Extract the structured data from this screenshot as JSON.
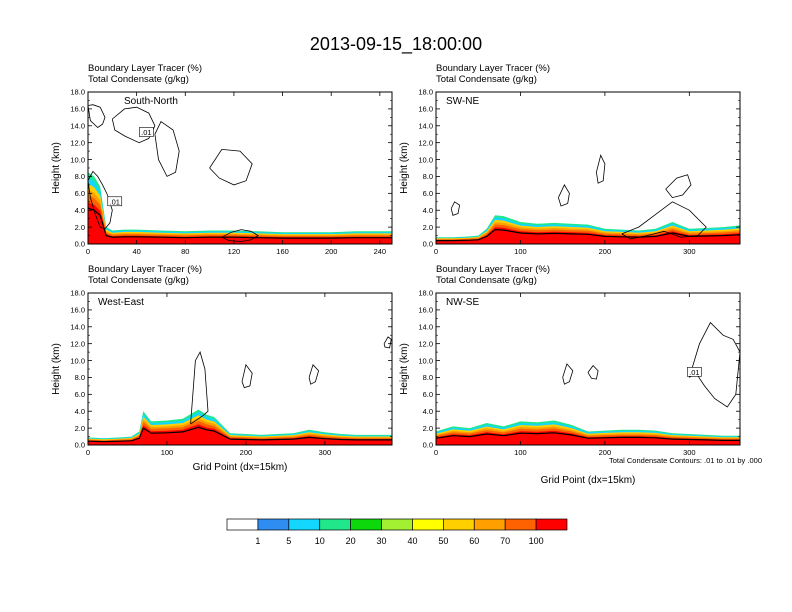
{
  "figure": {
    "title": "2013-09-15_18:00:00",
    "contour_note": "Total Condensate Contours: .01 to .01 by .000"
  },
  "colorbar": {
    "colors": [
      "#ffffff",
      "#2f8cf0",
      "#14d7ff",
      "#21e78b",
      "#0cd80c",
      "#a3f032",
      "#ffff00",
      "#ffcf00",
      "#ffa000",
      "#ff6200",
      "#ff0000"
    ],
    "labels": [
      "1",
      "5",
      "10",
      "20",
      "30",
      "40",
      "50",
      "60",
      "70",
      "100"
    ]
  },
  "chart_data": [
    {
      "type": "area",
      "label": "South-North",
      "subtitle_line1": "Boundary Layer Tracer   (%)",
      "subtitle_line2": "Total Condensate   (g/kg)",
      "ylabel": "Height (km)",
      "xlabel": "",
      "xlim": [
        0,
        250
      ],
      "ylim": [
        0,
        18
      ],
      "xticks": [
        "0",
        "40",
        "80",
        "120",
        "160",
        "200",
        "240"
      ],
      "yticks": [
        "0.0",
        "2.0",
        "4.0",
        "6.0",
        "8.0",
        "10.0",
        "12.0",
        "14.0",
        "16.0",
        "18.0"
      ],
      "contour_labels": [
        {
          "text": ".01",
          "x": 48,
          "y": 13.2
        },
        {
          "text": ".01",
          "x": 22,
          "y": 5.0
        }
      ],
      "boundary_layer_top_km": {
        "x": [
          0,
          5,
          10,
          15,
          20,
          30,
          40,
          60,
          80,
          100,
          120,
          140,
          160,
          180,
          200,
          220,
          240,
          250
        ],
        "y": [
          8.5,
          8.0,
          6.8,
          2.0,
          1.6,
          1.7,
          1.7,
          1.6,
          1.5,
          1.6,
          1.6,
          1.5,
          1.4,
          1.4,
          1.4,
          1.5,
          1.5,
          1.5
        ]
      },
      "condensate_contours_km": [
        {
          "x": [
            0,
            4,
            10,
            14,
            12,
            8,
            2,
            0
          ],
          "y": [
            16.4,
            16.5,
            16.2,
            15.0,
            14.2,
            13.8,
            14.6,
            16.4
          ]
        },
        {
          "x": [
            20,
            30,
            40,
            50,
            55,
            50,
            42,
            30,
            22,
            20
          ],
          "y": [
            14.8,
            16.0,
            16.2,
            15.5,
            14.0,
            12.5,
            12.0,
            12.8,
            13.5,
            14.8
          ]
        },
        {
          "x": [
            55,
            60,
            70,
            75,
            72,
            65,
            58,
            55
          ],
          "y": [
            13.0,
            14.5,
            13.5,
            11.0,
            8.5,
            8.0,
            10.0,
            13.0
          ]
        },
        {
          "x": [
            100,
            110,
            125,
            135,
            130,
            120,
            108,
            100
          ],
          "y": [
            9.0,
            11.2,
            11.0,
            9.5,
            7.5,
            7.0,
            7.8,
            9.0
          ]
        },
        {
          "x": [
            0,
            4,
            8,
            12,
            16,
            20,
            18,
            14,
            10,
            6,
            2,
            0
          ],
          "y": [
            7.5,
            8.6,
            8.0,
            7.0,
            5.8,
            4.0,
            2.5,
            1.8,
            2.0,
            3.5,
            5.5,
            7.5
          ]
        },
        {
          "x": [
            110,
            118,
            126,
            134,
            140,
            134,
            126,
            116,
            110
          ],
          "y": [
            0.8,
            1.4,
            1.7,
            1.5,
            1.0,
            0.5,
            0.3,
            0.4,
            0.8
          ]
        }
      ]
    },
    {
      "type": "area",
      "label": "SW-NE",
      "subtitle_line1": "Boundary Layer Tracer   (%)",
      "subtitle_line2": "Total Condensate   (g/kg)",
      "ylabel": "Height (km)",
      "xlabel": "",
      "xlim": [
        0,
        360
      ],
      "ylim": [
        0,
        18
      ],
      "xticks": [
        "0",
        "100",
        "200",
        "300"
      ],
      "yticks": [
        "0.0",
        "2.0",
        "4.0",
        "6.0",
        "8.0",
        "10.0",
        "12.0",
        "14.0",
        "16.0",
        "18.0"
      ],
      "contour_labels": [],
      "boundary_layer_top_km": {
        "x": [
          0,
          20,
          40,
          50,
          60,
          70,
          80,
          100,
          120,
          140,
          160,
          180,
          200,
          220,
          240,
          260,
          280,
          300,
          320,
          340,
          360
        ],
        "y": [
          0.8,
          0.8,
          0.9,
          1.0,
          1.8,
          3.4,
          3.3,
          2.6,
          2.4,
          2.5,
          2.4,
          2.3,
          1.8,
          1.7,
          1.6,
          1.8,
          2.6,
          1.8,
          1.9,
          2.0,
          2.2
        ]
      },
      "condensate_contours_km": [
        {
          "x": [
            18,
            22,
            28,
            26,
            20,
            18
          ],
          "y": [
            4.2,
            5.0,
            4.6,
            3.6,
            3.4,
            4.2
          ]
        },
        {
          "x": [
            145,
            152,
            158,
            156,
            148,
            145
          ],
          "y": [
            5.5,
            7.0,
            6.0,
            4.8,
            4.5,
            5.5
          ]
        },
        {
          "x": [
            190,
            195,
            200,
            198,
            192,
            190
          ],
          "y": [
            8.5,
            10.5,
            9.5,
            7.5,
            7.2,
            8.5
          ]
        },
        {
          "x": [
            272,
            285,
            298,
            302,
            292,
            280,
            272
          ],
          "y": [
            6.5,
            7.8,
            8.2,
            7.0,
            5.8,
            5.5,
            6.5
          ]
        },
        {
          "x": [
            220,
            240,
            260,
            280,
            300,
            320,
            310,
            290,
            270,
            250,
            230,
            220
          ],
          "y": [
            1.2,
            2.0,
            3.5,
            5.0,
            4.0,
            2.0,
            1.0,
            0.8,
            1.5,
            1.0,
            0.6,
            1.2
          ]
        }
      ]
    },
    {
      "type": "area",
      "label": "West-East",
      "subtitle_line1": "Boundary Layer Tracer   (%)",
      "subtitle_line2": "Total Condensate   (g/kg)",
      "ylabel": "Height (km)",
      "xlabel": "Grid Point (dx=15km)",
      "xlim": [
        0,
        385
      ],
      "ylim": [
        0,
        18
      ],
      "xticks": [
        "0",
        "100",
        "200",
        "300"
      ],
      "yticks": [
        "0.0",
        "2.0",
        "4.0",
        "6.0",
        "8.0",
        "10.0",
        "12.0",
        "14.0",
        "16.0",
        "18.0"
      ],
      "contour_labels": [],
      "boundary_layer_top_km": {
        "x": [
          0,
          20,
          40,
          55,
          65,
          70,
          80,
          100,
          120,
          140,
          150,
          160,
          180,
          200,
          220,
          240,
          260,
          280,
          300,
          320,
          340,
          360,
          385
        ],
        "y": [
          0.9,
          0.8,
          0.9,
          1.0,
          1.6,
          4.0,
          2.8,
          2.9,
          3.1,
          4.2,
          3.6,
          3.3,
          1.4,
          1.3,
          1.2,
          1.3,
          1.4,
          1.8,
          1.5,
          1.3,
          1.2,
          1.2,
          1.2
        ]
      },
      "condensate_contours_km": [
        {
          "x": [
            130,
            136,
            142,
            148,
            152,
            146,
            138,
            130
          ],
          "y": [
            2.5,
            10.0,
            11.0,
            9.0,
            4.0,
            3.5,
            3.0,
            2.5
          ]
        },
        {
          "x": [
            195,
            200,
            208,
            205,
            198,
            195
          ],
          "y": [
            7.5,
            9.5,
            8.5,
            7.0,
            6.8,
            7.5
          ]
        },
        {
          "x": [
            280,
            285,
            292,
            288,
            282,
            280
          ],
          "y": [
            8.0,
            9.5,
            8.8,
            7.5,
            7.2,
            8.0
          ]
        },
        {
          "x": [
            375,
            380,
            384,
            382,
            376,
            375
          ],
          "y": [
            12.0,
            12.8,
            12.5,
            11.5,
            11.6,
            12.0
          ]
        }
      ]
    },
    {
      "type": "area",
      "label": "NW-SE",
      "subtitle_line1": "Boundary Layer Tracer   (%)",
      "subtitle_line2": "Total Condensate   (g/kg)",
      "ylabel": "Height (km)",
      "xlabel": "Grid Point (dx=15km)",
      "xlim": [
        0,
        360
      ],
      "ylim": [
        0,
        18
      ],
      "xticks": [
        "0",
        "100",
        "200",
        "300"
      ],
      "yticks": [
        "0.0",
        "2.0",
        "4.0",
        "6.0",
        "8.0",
        "10.0",
        "12.0",
        "14.0",
        "16.0",
        "18.0"
      ],
      "contour_labels": [
        {
          "text": ".01",
          "x": 306,
          "y": 8.6
        }
      ],
      "boundary_layer_top_km": {
        "x": [
          0,
          20,
          40,
          60,
          80,
          100,
          120,
          140,
          160,
          180,
          200,
          220,
          240,
          260,
          280,
          300,
          320,
          340,
          360
        ],
        "y": [
          1.6,
          2.2,
          2.0,
          2.6,
          2.2,
          2.8,
          2.7,
          2.9,
          2.4,
          1.6,
          1.7,
          1.8,
          1.8,
          1.7,
          1.4,
          1.3,
          1.2,
          1.1,
          1.1
        ]
      },
      "condensate_contours_km": [
        {
          "x": [
            150,
            155,
            162,
            158,
            152,
            150
          ],
          "y": [
            8.0,
            9.6,
            8.8,
            7.5,
            7.2,
            8.0
          ]
        },
        {
          "x": [
            180,
            186,
            192,
            190,
            184,
            180
          ],
          "y": [
            8.6,
            9.4,
            8.8,
            7.8,
            7.9,
            8.6
          ]
        },
        {
          "x": [
            300,
            312,
            325,
            340,
            352,
            360,
            355,
            345,
            330,
            318,
            308,
            300
          ],
          "y": [
            8.0,
            12.0,
            14.5,
            13.0,
            12.5,
            11.0,
            6.0,
            4.5,
            5.5,
            7.0,
            8.5,
            8.0
          ]
        }
      ]
    }
  ]
}
